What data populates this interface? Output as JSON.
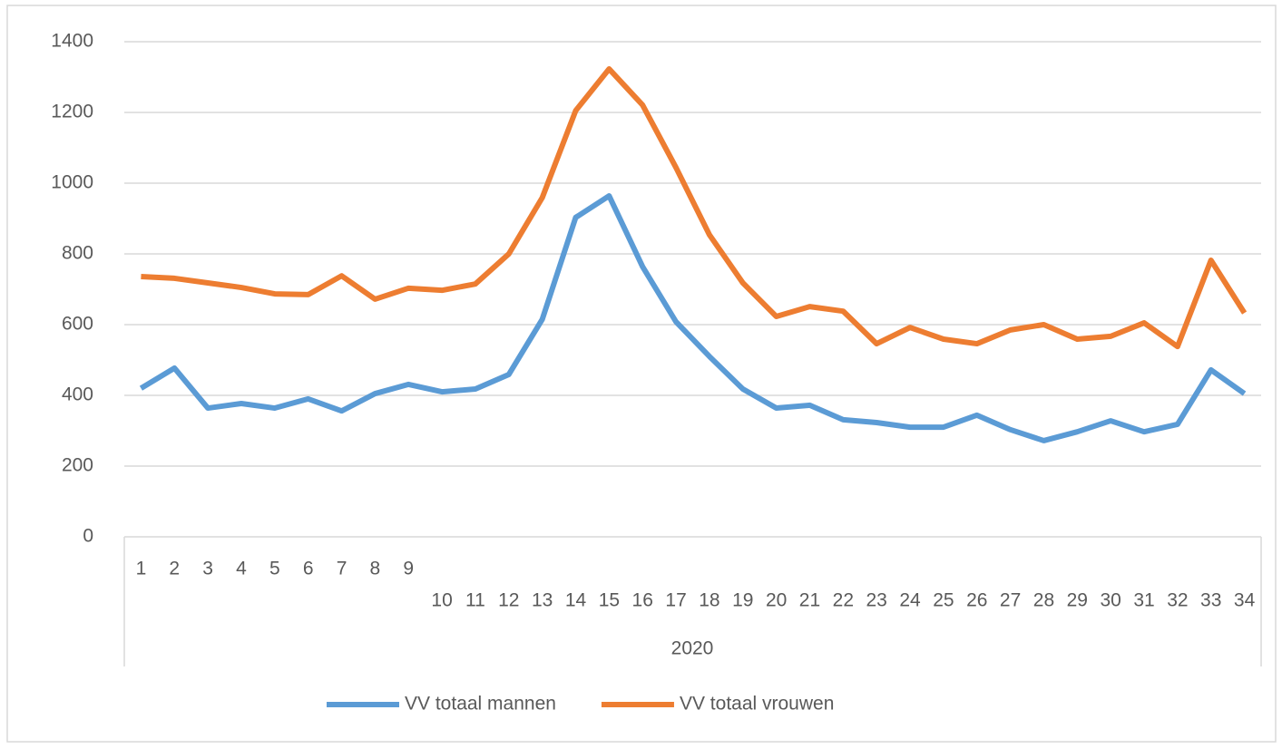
{
  "chart_data": {
    "type": "line",
    "categories": [
      "1",
      "2",
      "3",
      "4",
      "5",
      "6",
      "7",
      "8",
      "9",
      "10",
      "11",
      "12",
      "13",
      "14",
      "15",
      "16",
      "17",
      "18",
      "19",
      "20",
      "21",
      "22",
      "23",
      "24",
      "25",
      "26",
      "27",
      "28",
      "29",
      "30",
      "31",
      "32",
      "33",
      "34"
    ],
    "category_group": "2020",
    "series": [
      {
        "name": "VV totaal mannen",
        "color": "#5b9bd5",
        "values": [
          420,
          477,
          364,
          377,
          364,
          390,
          356,
          405,
          431,
          410,
          418,
          459,
          615,
          903,
          964,
          764,
          608,
          510,
          418,
          364,
          372,
          331,
          323,
          310,
          310,
          344,
          303,
          272,
          297,
          328,
          297,
          318,
          472,
          405
        ]
      },
      {
        "name": "VV totaal vrouwen",
        "color": "#ed7d31",
        "values": [
          736,
          731,
          718,
          705,
          687,
          685,
          738,
          672,
          703,
          697,
          715,
          800,
          959,
          1205,
          1323,
          1221,
          1044,
          854,
          718,
          623,
          651,
          638,
          546,
          592,
          559,
          546,
          585,
          600,
          559,
          567,
          605,
          538,
          782,
          633
        ]
      }
    ],
    "ylim": [
      0,
      1400
    ],
    "yticks": [
      0,
      200,
      400,
      600,
      800,
      1000,
      1200,
      1400
    ],
    "grid": true,
    "legend": "bottom"
  }
}
